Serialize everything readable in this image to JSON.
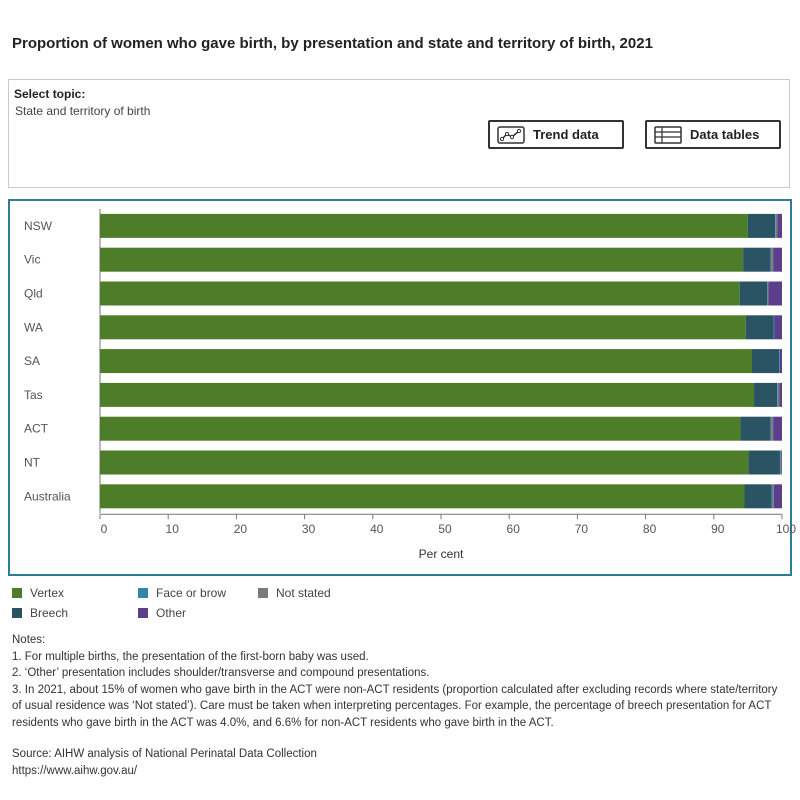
{
  "title": "Proportion of women who gave birth, by presentation and state and territory of birth, 2021",
  "topic": {
    "label": "Select topic:",
    "value": "State and territory of birth"
  },
  "buttons": {
    "trend": "Trend data",
    "tables": "Data tables"
  },
  "chart_data": {
    "type": "bar",
    "orientation": "horizontal",
    "stacked": true,
    "categories": [
      "NSW",
      "Vic",
      "Qld",
      "WA",
      "SA",
      "Tas",
      "ACT",
      "NT",
      "Australia"
    ],
    "series": [
      {
        "name": "Vertex",
        "color": "#4e7d2a",
        "values": [
          95.0,
          94.3,
          93.8,
          94.7,
          95.6,
          95.9,
          93.9,
          95.1,
          94.5
        ]
      },
      {
        "name": "Breech",
        "color": "#2a5463",
        "values": [
          4.0,
          4.0,
          4.0,
          4.1,
          4.0,
          3.4,
          4.4,
          4.6,
          4.0
        ]
      },
      {
        "name": "Face or brow",
        "color": "#2e86ab",
        "values": [
          0.1,
          0.1,
          0.1,
          0.1,
          0.1,
          0.1,
          0.1,
          0.1,
          0.1
        ]
      },
      {
        "name": "Not stated",
        "color": "#7a7a7a",
        "values": [
          0.2,
          0.3,
          0.1,
          0.0,
          0.0,
          0.2,
          0.3,
          0.1,
          0.2
        ]
      },
      {
        "name": "Other",
        "color": "#5b3f8c",
        "values": [
          0.7,
          1.3,
          2.0,
          1.1,
          0.3,
          0.4,
          1.3,
          0.1,
          1.2
        ]
      }
    ],
    "xlabel": "Per cent",
    "xlim": [
      0,
      100
    ],
    "xticks": [
      "0",
      "10",
      "20",
      "30",
      "40",
      "50",
      "60",
      "70",
      "80",
      "90",
      "100"
    ],
    "grid": false,
    "legend_placement": "bottom"
  },
  "legend": [
    {
      "label": "Vertex",
      "color": "#4e7d2a"
    },
    {
      "label": "Face or brow",
      "color": "#2e86ab"
    },
    {
      "label": "Not stated",
      "color": "#7a7a7a"
    },
    {
      "label": "Breech",
      "color": "#2a5463"
    },
    {
      "label": "Other",
      "color": "#5b3f8c"
    }
  ],
  "notes": {
    "heading": "Notes:",
    "items": [
      "1. For multiple births, the presentation of the first-born baby was used.",
      "2. ‘Other’ presentation includes shoulder/transverse and compound presentations.",
      "3. In 2021, about 15% of women who gave birth in the ACT were non-ACT residents (proportion calculated after excluding records where state/territory of usual residence was ‘Not stated’). Care must be taken when interpreting percentages. For example, the percentage of breech presentation for ACT residents who gave birth in the ACT was 4.0%, and 6.6% for non-ACT residents who gave birth in the ACT."
    ]
  },
  "source": {
    "text": "Source: AIHW analysis of National Perinatal Data Collection",
    "url": "https://www.aihw.gov.au/"
  }
}
